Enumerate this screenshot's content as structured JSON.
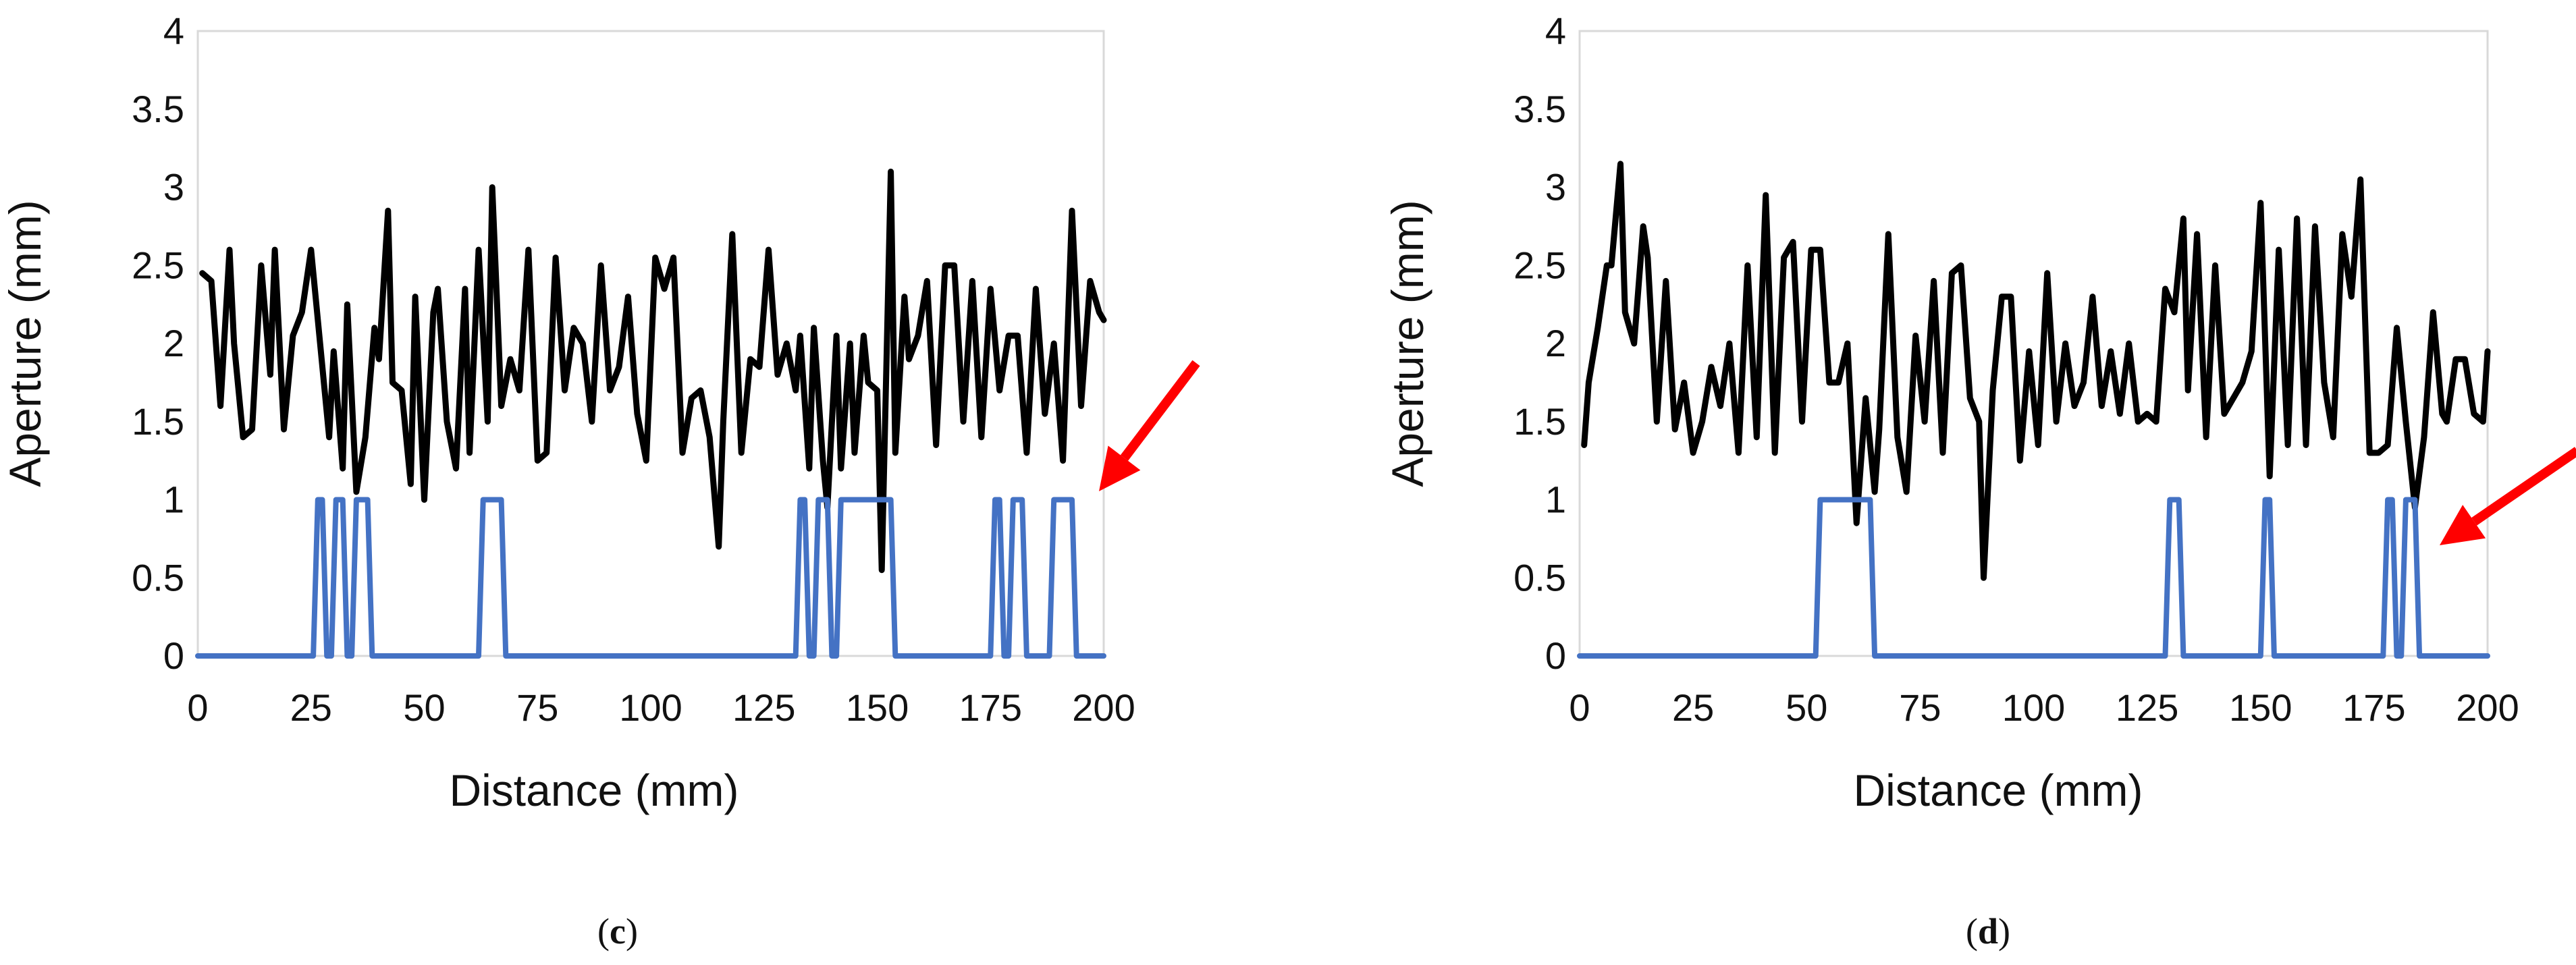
{
  "chart_data": [
    {
      "type": "line",
      "caption_letter": "c",
      "xlabel": "Distance (mm)",
      "ylabel": "Aperture (mm)",
      "xlim": [
        0,
        200
      ],
      "ylim": [
        0,
        4
      ],
      "xticks": [
        "0",
        "25",
        "50",
        "75",
        "100",
        "125",
        "150",
        "175",
        "200"
      ],
      "yticks": [
        "0",
        "0.5",
        "1",
        "1.5",
        "2",
        "2.5",
        "3",
        "3.5",
        "4"
      ],
      "grid": false,
      "annotation": "red arrow pointing at the right end of the indicator series near x=195, y=1",
      "series": [
        {
          "color": "#000000",
          "x": [
            1,
            3,
            5,
            7,
            8,
            10,
            12,
            14,
            16,
            17,
            19,
            21,
            23,
            25,
            27,
            29,
            30,
            32,
            33,
            35,
            37,
            39,
            40,
            42,
            43,
            45,
            47,
            48,
            50,
            52,
            53,
            55,
            57,
            59,
            60,
            62,
            64,
            65,
            67,
            69,
            71,
            73,
            75,
            77,
            79,
            81,
            83,
            85,
            87,
            89,
            91,
            93,
            95,
            97,
            99,
            101,
            103,
            105,
            107,
            109,
            111,
            113,
            115,
            116,
            118,
            120,
            122,
            124,
            126,
            128,
            130,
            132,
            133,
            135,
            136,
            138,
            139,
            141,
            142,
            144,
            145,
            147,
            148,
            150,
            151,
            153,
            154,
            156,
            157,
            159,
            161,
            163,
            165,
            167,
            169,
            171,
            173,
            175,
            177,
            179,
            181,
            183,
            185,
            187,
            189,
            191,
            193,
            195,
            197,
            199,
            200
          ],
          "y": [
            2.45,
            2.4,
            1.6,
            2.6,
            2.0,
            1.4,
            1.45,
            2.5,
            1.8,
            2.6,
            1.45,
            2.05,
            2.2,
            2.6,
            2.0,
            1.4,
            1.95,
            1.2,
            2.25,
            1.05,
            1.4,
            2.1,
            1.9,
            2.85,
            1.75,
            1.7,
            1.1,
            2.3,
            1.0,
            2.2,
            2.35,
            1.5,
            1.2,
            2.35,
            1.3,
            2.6,
            1.5,
            3.0,
            1.6,
            1.9,
            1.7,
            2.6,
            1.25,
            1.3,
            2.55,
            1.7,
            2.1,
            2.0,
            1.5,
            2.5,
            1.7,
            1.85,
            2.3,
            1.55,
            1.25,
            2.55,
            2.35,
            2.55,
            1.3,
            1.65,
            1.7,
            1.4,
            0.7,
            1.5,
            2.7,
            1.3,
            1.9,
            1.85,
            2.6,
            1.8,
            2.0,
            1.7,
            2.05,
            1.2,
            2.1,
            1.25,
            0.95,
            2.05,
            1.2,
            2.0,
            1.3,
            2.05,
            1.75,
            1.7,
            0.55,
            3.1,
            1.3,
            2.3,
            1.9,
            2.05,
            2.4,
            1.35,
            2.5,
            2.5,
            1.5,
            2.4,
            1.4,
            2.35,
            1.7,
            2.05,
            2.05,
            1.3,
            2.35,
            1.55,
            2.0,
            1.25,
            2.85,
            1.6,
            2.4,
            2.2,
            2.15
          ]
        },
        {
          "color": "#4472C4",
          "x": [
            0,
            25.5,
            26.5,
            27.5,
            28.5,
            29.5,
            30.5,
            32,
            33,
            34,
            35,
            37.5,
            38.5,
            62,
            63,
            67,
            68,
            132,
            133,
            134,
            135,
            136,
            137,
            139,
            140,
            141,
            142,
            153,
            154,
            175,
            176,
            177,
            178,
            179,
            180,
            182,
            183,
            188,
            189,
            193,
            194,
            200
          ],
          "y": [
            0,
            0,
            1,
            1,
            0,
            0,
            1,
            1,
            0,
            0,
            1,
            1,
            0,
            0,
            1,
            1,
            0,
            0,
            1,
            1,
            0,
            0,
            1,
            1,
            0,
            0,
            1,
            1,
            0,
            0,
            1,
            1,
            0,
            0,
            1,
            1,
            0,
            0,
            1,
            1,
            0,
            0
          ]
        }
      ]
    },
    {
      "type": "line",
      "caption_letter": "d",
      "xlabel": "Distance (mm)",
      "ylabel": "Aperture (mm)",
      "xlim": [
        0,
        200
      ],
      "ylim": [
        0,
        4
      ],
      "xticks": [
        "0",
        "25",
        "50",
        "75",
        "100",
        "125",
        "150",
        "175",
        "200"
      ],
      "yticks": [
        "0",
        "0.5",
        "1",
        "1.5",
        "2",
        "2.5",
        "3",
        "3.5",
        "4"
      ],
      "grid": false,
      "annotation": "red arrow pointing at the rightmost indicator pulses near x=185, y=0.7",
      "series": [
        {
          "color": "#000000",
          "x": [
            1,
            2,
            4,
            6,
            7,
            9,
            10,
            12,
            14,
            15,
            17,
            19,
            21,
            23,
            25,
            27,
            29,
            31,
            33,
            35,
            37,
            39,
            41,
            43,
            45,
            47,
            49,
            51,
            53,
            55,
            57,
            59,
            61,
            63,
            65,
            66,
            68,
            70,
            72,
            74,
            76,
            78,
            80,
            82,
            84,
            86,
            88,
            89,
            91,
            93,
            95,
            97,
            99,
            101,
            103,
            105,
            107,
            109,
            111,
            113,
            115,
            117,
            119,
            121,
            123,
            125,
            127,
            129,
            131,
            133,
            134,
            136,
            138,
            140,
            142,
            144,
            146,
            148,
            150,
            152,
            154,
            156,
            158,
            160,
            162,
            164,
            166,
            168,
            170,
            172,
            174,
            176,
            178,
            180,
            182,
            184,
            186,
            188,
            190,
            191,
            193,
            195,
            197,
            199,
            200
          ],
          "y": [
            1.35,
            1.75,
            2.1,
            2.5,
            2.5,
            3.15,
            2.2,
            2.0,
            2.75,
            2.55,
            1.5,
            2.4,
            1.45,
            1.75,
            1.3,
            1.5,
            1.85,
            1.6,
            2.0,
            1.3,
            2.5,
            1.4,
            2.95,
            1.3,
            2.55,
            2.65,
            1.5,
            2.6,
            2.6,
            1.75,
            1.75,
            2.0,
            0.85,
            1.65,
            1.05,
            1.45,
            2.7,
            1.4,
            1.05,
            2.05,
            1.5,
            2.4,
            1.3,
            2.45,
            2.5,
            1.65,
            1.5,
            0.5,
            1.7,
            2.3,
            2.3,
            1.25,
            1.95,
            1.35,
            2.45,
            1.5,
            2.0,
            1.6,
            1.75,
            2.3,
            1.6,
            1.95,
            1.55,
            2.0,
            1.5,
            1.55,
            1.5,
            2.35,
            2.2,
            2.8,
            1.7,
            2.7,
            1.4,
            2.5,
            1.55,
            1.65,
            1.75,
            1.95,
            2.9,
            1.15,
            2.6,
            1.35,
            2.8,
            1.35,
            2.75,
            1.75,
            1.4,
            2.7,
            2.3,
            3.05,
            1.3,
            1.3,
            1.35,
            2.1,
            1.5,
            0.95,
            1.4,
            2.2,
            1.55,
            1.5,
            1.9,
            1.9,
            1.55,
            1.5,
            1.95
          ]
        },
        {
          "color": "#4472C4",
          "x": [
            0,
            52,
            53,
            64,
            65,
            129,
            130,
            132,
            133,
            150,
            151,
            152,
            153,
            177,
            178,
            179,
            180,
            181,
            182,
            184,
            185,
            200
          ],
          "y": [
            0,
            0,
            1,
            1,
            0,
            0,
            1,
            1,
            0,
            0,
            1,
            1,
            0,
            0,
            1,
            1,
            0,
            0,
            1,
            1,
            0,
            0
          ]
        }
      ]
    }
  ]
}
